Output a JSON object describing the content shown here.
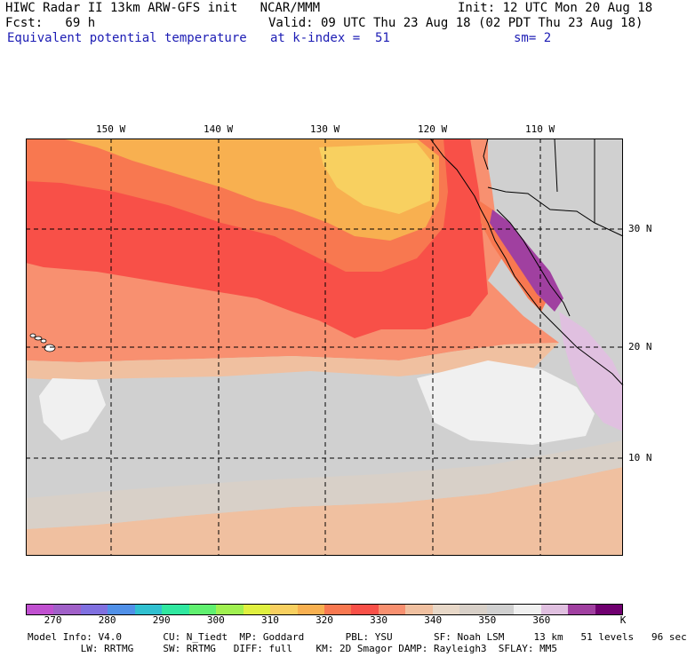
{
  "header": {
    "line1_left": "HIWC Radar II 13km ARW-GFS init   NCAR/MMM",
    "line1_right": "Init: 12 UTC Mon 20 Aug 18",
    "line2_left": "Fcst:   69 h",
    "line2_right": "Valid: 09 UTC Thu 23 Aug 18 (02 PDT Thu 23 Aug 18)",
    "line3_field": "Equivalent potential temperature",
    "line3_level": "at k-index =  51",
    "line3_sm": "sm= 2"
  },
  "map": {
    "lon_labels": [
      "150 W",
      "140 W",
      "130 W",
      "120 W",
      "110 W"
    ],
    "lat_labels": [
      "30 N",
      "20 N",
      "10 N"
    ]
  },
  "colorbar": {
    "colors": [
      "#c050d0",
      "#a060c8",
      "#8070e0",
      "#5090e8",
      "#30c0d0",
      "#30e8a0",
      "#60f070",
      "#a0f050",
      "#e0f040",
      "#f8d060",
      "#f8b050",
      "#f87850",
      "#f85048",
      "#f89070",
      "#f0c0a0",
      "#e8d8c8",
      "#d8d0c8",
      "#d0d0d0",
      "#f0f0f0",
      "#e0c0e0",
      "#a040a0",
      "#700070"
    ],
    "labels": [
      "270",
      "280",
      "290",
      "300",
      "310",
      "320",
      "330",
      "340",
      "350",
      "360",
      "K"
    ]
  },
  "footer": {
    "line1": "Model Info: V4.0       CU: N_Tiedt  MP: Goddard       PBL: YSU       SF: Noah LSM     13 km   51 levels   96 sec",
    "line2": "         LW: RRTMG     SW: RRTMG   DIFF: full    KM: 2D Smagor DAMP: Rayleigh3  SFLAY: MM5"
  },
  "colors": {
    "title_blue": "#1c1cb4",
    "warm_330": "#f85048",
    "orange_320": "#f8b050",
    "gray_360": "#d0d0d0",
    "white_370": "#f0f0f0",
    "purple_390": "#a040a0"
  }
}
